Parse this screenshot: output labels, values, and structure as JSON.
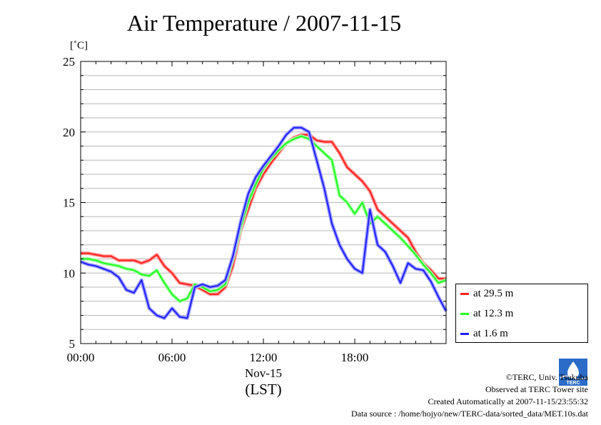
{
  "chart_data": {
    "type": "line",
    "title": "Air Temperature / 2007-11-15",
    "ylabel": "[˚C]",
    "xlabel": "Nov-15",
    "xlabel_sub": "(LST)",
    "ylim": [
      5,
      25
    ],
    "xlim": [
      0,
      24
    ],
    "y_ticks": [
      "5",
      "10",
      "15",
      "20",
      "25"
    ],
    "x_ticks": [
      "00:00",
      "06:00",
      "12:00",
      "18:00"
    ],
    "grid": "horizontal",
    "legend_position": "bottom-right",
    "series": [
      {
        "name": "at 29.5 m",
        "color": "#ff2020",
        "x": [
          0,
          0.5,
          1,
          1.5,
          2,
          2.5,
          3,
          3.5,
          4,
          4.5,
          5,
          5.5,
          6,
          6.5,
          7,
          7.5,
          8,
          8.5,
          9,
          9.5,
          10,
          10.5,
          11,
          11.5,
          12,
          12.5,
          13,
          13.5,
          14,
          14.5,
          15,
          15.5,
          16,
          16.5,
          17,
          17.5,
          18,
          18.5,
          19,
          19.5,
          20,
          20.5,
          21,
          21.5,
          22,
          22.5,
          23,
          23.5,
          24
        ],
        "values": [
          11.4,
          11.4,
          11.3,
          11.2,
          11.2,
          10.9,
          10.9,
          10.9,
          10.7,
          10.9,
          11.3,
          10.5,
          10.0,
          9.3,
          9.2,
          9.1,
          8.8,
          8.5,
          8.5,
          9.0,
          10.5,
          13.0,
          14.5,
          16.0,
          17.0,
          17.8,
          18.5,
          19.2,
          19.6,
          19.8,
          19.8,
          19.4,
          19.3,
          19.3,
          18.5,
          17.5,
          17.0,
          16.5,
          15.8,
          14.5,
          14.0,
          13.5,
          13.0,
          12.5,
          11.5,
          10.7,
          10.2,
          9.6,
          9.6
        ]
      },
      {
        "name": "at 12.3 m",
        "color": "#20ff20",
        "x": [
          0,
          0.5,
          1,
          1.5,
          2,
          2.5,
          3,
          3.5,
          4,
          4.5,
          5,
          5.5,
          6,
          6.5,
          7,
          7.5,
          8,
          8.5,
          9,
          9.5,
          10,
          10.5,
          11,
          11.5,
          12,
          12.5,
          13,
          13.5,
          14,
          14.5,
          15,
          15.5,
          16,
          16.5,
          17,
          17.5,
          18,
          18.5,
          19,
          19.5,
          20,
          20.5,
          21,
          21.5,
          22,
          22.5,
          23,
          23.5,
          24
        ],
        "values": [
          11.0,
          11.0,
          10.9,
          10.7,
          10.6,
          10.5,
          10.3,
          10.2,
          9.9,
          9.8,
          10.2,
          9.3,
          8.5,
          8.0,
          8.2,
          9.2,
          9.0,
          8.7,
          8.8,
          9.2,
          11.0,
          13.2,
          15.0,
          16.3,
          17.4,
          18.1,
          18.7,
          19.2,
          19.5,
          19.7,
          19.5,
          19.0,
          18.5,
          18.0,
          15.5,
          15.0,
          14.2,
          15.0,
          13.5,
          14.0,
          13.5,
          13.0,
          12.5,
          11.9,
          11.3,
          10.6,
          10.0,
          9.3,
          9.5
        ]
      },
      {
        "name": "at 1.6 m",
        "color": "#2020ff",
        "x": [
          0,
          0.5,
          1,
          1.5,
          2,
          2.5,
          3,
          3.5,
          4,
          4.5,
          5,
          5.5,
          6,
          6.5,
          7,
          7.5,
          8,
          8.5,
          9,
          9.5,
          10,
          10.5,
          11,
          11.5,
          12,
          12.5,
          13,
          13.5,
          14,
          14.5,
          15,
          15.5,
          16,
          16.5,
          17,
          17.5,
          18,
          18.5,
          19,
          19.5,
          20,
          20.5,
          21,
          21.5,
          22,
          22.5,
          23,
          23.5,
          24
        ],
        "values": [
          10.8,
          10.6,
          10.5,
          10.3,
          10.1,
          9.7,
          8.8,
          8.6,
          9.5,
          7.5,
          7.0,
          6.8,
          7.5,
          6.9,
          6.8,
          9.0,
          9.2,
          9.0,
          9.1,
          9.5,
          11.2,
          13.6,
          15.6,
          16.8,
          17.6,
          18.3,
          19.0,
          19.8,
          20.3,
          20.3,
          20.0,
          18.0,
          16.0,
          13.5,
          12.0,
          11.0,
          10.3,
          10.0,
          14.5,
          12.0,
          11.5,
          10.5,
          9.3,
          10.7,
          10.3,
          10.2,
          9.4,
          8.3,
          7.3
        ]
      }
    ]
  },
  "legend": {
    "items": [
      "at 29.5 m",
      "at 12.3 m",
      "at 1.6 m"
    ]
  },
  "credits": {
    "copyright": "©TERC, Univ. Tsukuba",
    "observed": "Observed at TERC Tower site",
    "created": "Created Automatically at 2007-11-15/23:55:32",
    "source": "Data source : /home/hojyo/new/TERC-data/sorted_data/MET.10s.dat"
  },
  "logo": {
    "text": "TERC",
    "color": "#2a6cc7"
  }
}
